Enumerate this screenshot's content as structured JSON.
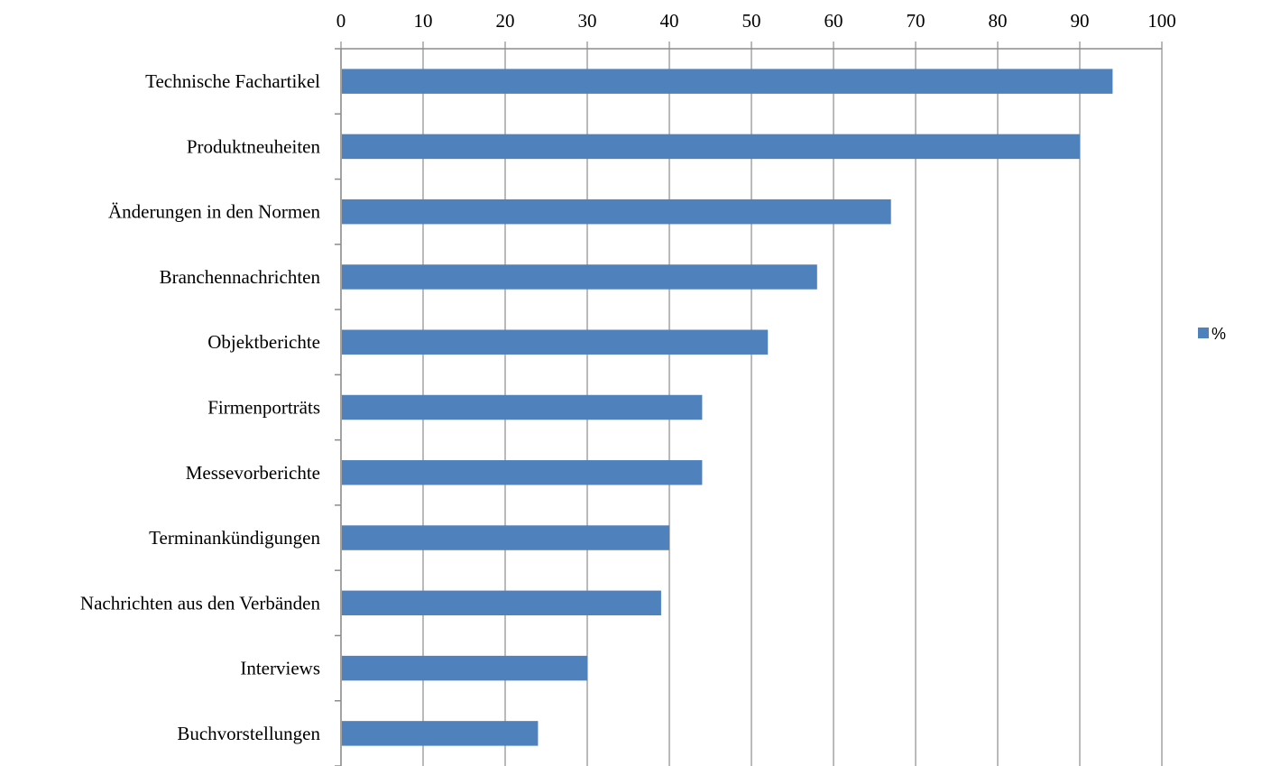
{
  "chart_data": {
    "type": "bar",
    "orientation": "horizontal",
    "categories": [
      "Technische Fachartikel",
      "Produktneuheiten",
      "Änderungen in den Normen",
      "Branchennachrichten",
      "Objektberichte",
      "Firmenporträts",
      "Messevorberichte",
      "Terminankündigungen",
      "Nachrichten aus den Verbänden",
      "Interviews",
      "Buchvorstellungen"
    ],
    "series": [
      {
        "name": "%",
        "color": "#4f81bd",
        "values": [
          94,
          90,
          67,
          58,
          52,
          44,
          44,
          40,
          39,
          30,
          24
        ]
      }
    ],
    "xlim": [
      0,
      100
    ],
    "x_ticks": [
      0,
      10,
      20,
      30,
      40,
      50,
      60,
      70,
      80,
      90,
      100
    ],
    "x_axis_position": "top",
    "grid": "vertical",
    "legend": {
      "position": "right"
    }
  }
}
